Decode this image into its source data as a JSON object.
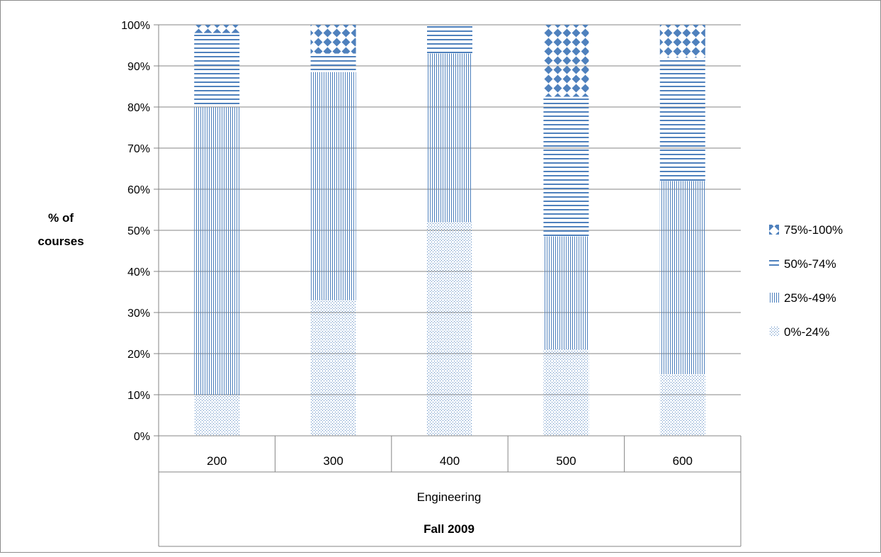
{
  "chart_data": {
    "type": "bar",
    "stacked": true,
    "percent_stacked": true,
    "title": "",
    "ylabel": "% of courses",
    "ylim": [
      0,
      100
    ],
    "yticks": [
      "0%",
      "10%",
      "20%",
      "30%",
      "40%",
      "50%",
      "60%",
      "70%",
      "80%",
      "90%",
      "100%"
    ],
    "categories": [
      "200",
      "300",
      "400",
      "500",
      "600"
    ],
    "category_group": "Engineering",
    "period": "Fall 2009",
    "grid": "horizontal",
    "legend_position": "right",
    "series": [
      {
        "name": "0%-24%",
        "values": [
          10,
          33,
          52,
          21,
          15
        ],
        "pattern": "dots",
        "color": "#4f81bd"
      },
      {
        "name": "25%-49%",
        "values": [
          70,
          55.5,
          41,
          27.5,
          47
        ],
        "pattern": "vertical",
        "color": "#4f81bd"
      },
      {
        "name": "50%-74%",
        "values": [
          18,
          4.5,
          7,
          34,
          30
        ],
        "pattern": "horizontal",
        "color": "#4f81bd"
      },
      {
        "name": "75%-100%",
        "values": [
          2,
          7,
          0,
          17.5,
          8
        ],
        "pattern": "diamonds",
        "color": "#4f81bd"
      }
    ]
  }
}
